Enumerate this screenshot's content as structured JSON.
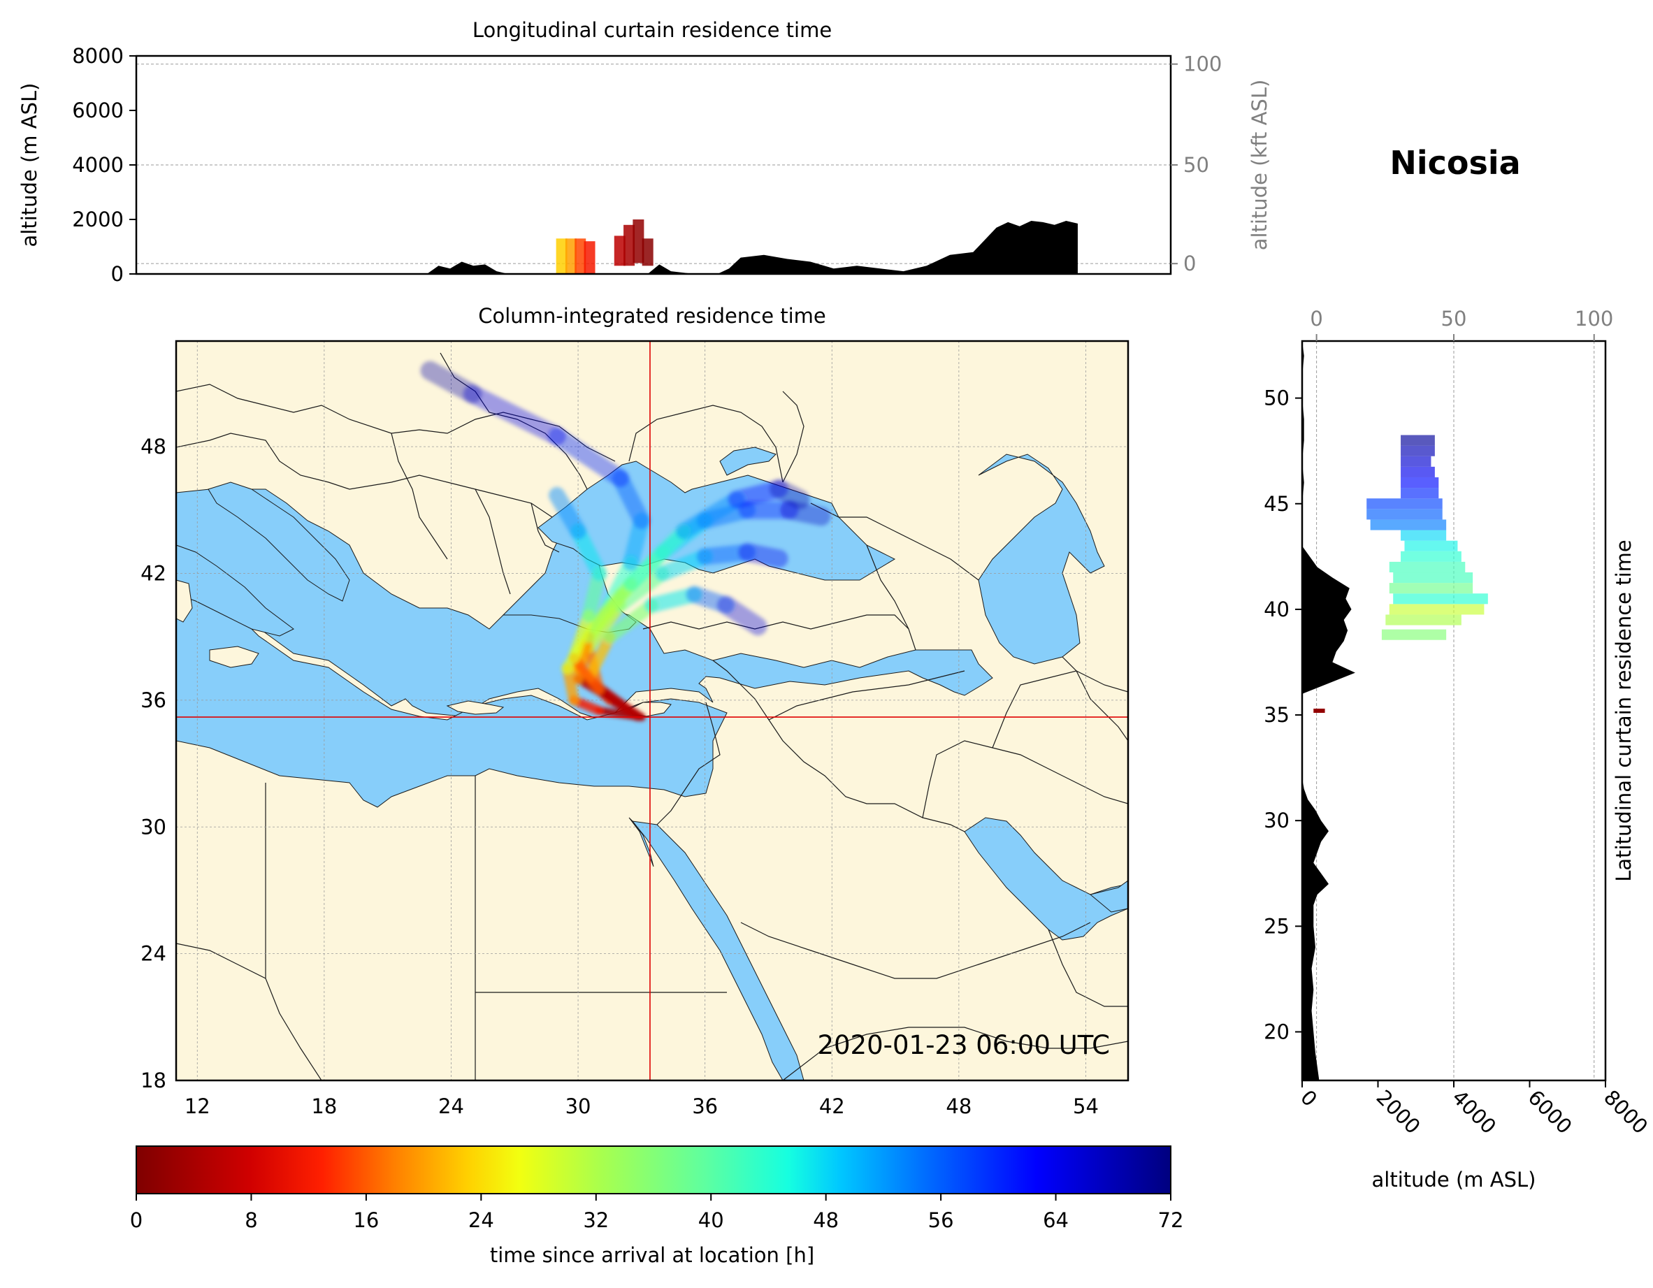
{
  "station": "Nicosia",
  "timestamp": "2020-01-23 06:00 UTC",
  "colors": {
    "land": "#fdf6dc",
    "sea": "#87cefa",
    "crosshair": "#e00000",
    "terrain": "#000000",
    "grid": "#9a9a9a",
    "secondary_axis": "#808080"
  },
  "chart_data": [
    {
      "name": "longitudinal-curtain",
      "type": "area",
      "title": "Longitudinal curtain residence time",
      "ylabel": "altitude (m ASL)",
      "ylabel_right": "altitude (kft ASL)",
      "ylim": [
        0,
        8000
      ],
      "yticks": [
        "0",
        "2000",
        "4000",
        "6000",
        "8000"
      ],
      "yticks_right": [
        "0",
        "50",
        "100"
      ],
      "xlim": [
        11,
        55.5
      ],
      "terrain": {
        "lon": [
          11,
          23.5,
          24,
          24.5,
          25,
          25.5,
          26,
          26.5,
          27,
          27.5,
          29,
          31,
          33,
          33.5,
          34,
          35,
          36,
          36.5,
          37,
          38,
          39,
          40,
          41,
          42,
          43,
          44,
          45,
          46,
          47,
          48,
          48.5,
          49,
          49.5,
          50,
          50.5,
          51,
          51.5
        ],
        "alt": [
          0,
          0,
          300,
          200,
          450,
          300,
          350,
          100,
          0,
          0,
          0,
          0,
          0,
          350,
          100,
          0,
          0,
          200,
          600,
          700,
          550,
          450,
          200,
          300,
          200,
          100,
          300,
          700,
          800,
          1700,
          1900,
          1750,
          1950,
          1900,
          1800,
          1950,
          1850
        ]
      },
      "plume": [
        {
          "lon": 29.3,
          "alt_min": 0,
          "alt_max": 1300,
          "age_h": 23
        },
        {
          "lon": 29.7,
          "alt_min": 0,
          "alt_max": 1300,
          "age_h": 20
        },
        {
          "lon": 30.1,
          "alt_min": 0,
          "alt_max": 1300,
          "age_h": 15
        },
        {
          "lon": 30.5,
          "alt_min": 0,
          "alt_max": 1200,
          "age_h": 12
        },
        {
          "lon": 31.8,
          "alt_min": 300,
          "alt_max": 1400,
          "age_h": 6
        },
        {
          "lon": 32.2,
          "alt_min": 300,
          "alt_max": 1800,
          "age_h": 4
        },
        {
          "lon": 32.6,
          "alt_min": 400,
          "alt_max": 2000,
          "age_h": 2
        },
        {
          "lon": 33.0,
          "alt_min": 300,
          "alt_max": 1300,
          "age_h": 1
        }
      ]
    },
    {
      "name": "column-integrated",
      "type": "heatmap",
      "title": "Column-integrated residence time",
      "xlim": [
        11,
        56
      ],
      "ylim": [
        18,
        53
      ],
      "xticks": [
        "12",
        "18",
        "24",
        "30",
        "36",
        "42",
        "48",
        "54"
      ],
      "yticks": [
        "18",
        "24",
        "30",
        "36",
        "42",
        "48"
      ],
      "release_point": {
        "lon": 33.4,
        "lat": 35.2
      },
      "trajectories": [
        {
          "lon": [
            33.0,
            31.0,
            29.8,
            29.5,
            30.5,
            31.5,
            32.5,
            33.0,
            32.0,
            29.0,
            25.0,
            23.0
          ],
          "lat": [
            35.2,
            35.5,
            36.0,
            37.5,
            39.0,
            40.5,
            42.5,
            44.5,
            46.5,
            48.5,
            50.5,
            51.6
          ],
          "age_h": [
            0,
            8,
            16,
            24,
            32,
            40,
            48,
            54,
            58,
            62,
            66,
            72
          ]
        },
        {
          "lon": [
            33.0,
            31.5,
            30.0,
            30.5,
            32.0,
            34.0,
            36.0,
            38.0,
            40.0,
            41.5
          ],
          "lat": [
            35.2,
            36.0,
            37.5,
            39.0,
            41.0,
            43.0,
            44.5,
            45.0,
            45.0,
            44.7
          ],
          "age_h": [
            0,
            8,
            20,
            28,
            36,
            44,
            52,
            58,
            64,
            70
          ]
        },
        {
          "lon": [
            32.8,
            31.0,
            30.5,
            32.0,
            34.0,
            36.0,
            38.0,
            39.5
          ],
          "lat": [
            35.2,
            36.5,
            38.5,
            40.5,
            42.0,
            42.8,
            43.0,
            42.7
          ],
          "age_h": [
            0,
            10,
            24,
            34,
            44,
            52,
            60,
            68
          ]
        },
        {
          "lon": [
            32.5,
            30.5,
            31.5,
            33.5,
            35.5,
            37.0,
            38.5
          ],
          "lat": [
            35.5,
            37.0,
            39.0,
            40.5,
            41.0,
            40.5,
            39.5
          ],
          "age_h": [
            0,
            14,
            30,
            42,
            52,
            60,
            70
          ]
        },
        {
          "lon": [
            32.5,
            30.0,
            30.5,
            32.5,
            35.0,
            37.5,
            39.5,
            40.5
          ],
          "lat": [
            35.5,
            37.0,
            39.0,
            41.5,
            44.0,
            45.5,
            46.0,
            45.5
          ],
          "age_h": [
            0,
            12,
            26,
            38,
            48,
            58,
            66,
            72
          ]
        },
        {
          "lon": [
            33.0,
            31.0,
            29.8,
            30.5,
            31.0,
            30.0,
            29.0
          ],
          "lat": [
            35.2,
            36.5,
            38.0,
            40.0,
            42.0,
            44.0,
            45.7
          ],
          "age_h": [
            0,
            10,
            22,
            34,
            44,
            50,
            56
          ]
        }
      ]
    },
    {
      "name": "latitudinal-curtain",
      "type": "area",
      "title": "Latitudinal curtain residence time",
      "xlabel": "altitude (m ASL)",
      "xlabel_top": "",
      "xlim": [
        0,
        8000
      ],
      "xticks": [
        "0",
        "2000",
        "4000",
        "6000",
        "8000"
      ],
      "xticks_top": [
        "0",
        "50",
        "100"
      ],
      "ylim": [
        17.7,
        52.7
      ],
      "yticks": [
        "20",
        "25",
        "30",
        "35",
        "40",
        "45",
        "50"
      ],
      "terrain": {
        "lat": [
          17.7,
          19,
          20,
          21,
          22,
          23,
          24,
          25,
          26,
          26.5,
          27,
          27.5,
          28,
          29,
          29.5,
          30,
          30.5,
          31,
          31.5,
          32,
          33,
          34,
          35,
          35.5,
          36,
          36.5,
          37,
          37.5,
          38,
          38.5,
          39,
          39.5,
          40,
          40.5,
          41,
          41.5,
          42,
          43,
          45,
          46,
          47,
          48,
          49,
          50,
          51,
          52,
          52.7
        ],
        "alt": [
          450,
          350,
          300,
          250,
          300,
          250,
          350,
          300,
          300,
          400,
          700,
          500,
          300,
          500,
          700,
          500,
          350,
          150,
          50,
          0,
          0,
          0,
          0,
          0,
          0,
          700,
          1400,
          800,
          900,
          1100,
          1200,
          1100,
          1300,
          1150,
          1250,
          800,
          400,
          0,
          0,
          50,
          0,
          50,
          50,
          0,
          0,
          50,
          0
        ]
      },
      "plume": [
        {
          "lat": 38.8,
          "alt_min": 2100,
          "alt_max": 3800,
          "age_h": 36
        },
        {
          "lat": 39.5,
          "alt_min": 2200,
          "alt_max": 4200,
          "age_h": 32
        },
        {
          "lat": 40.0,
          "alt_min": 2300,
          "alt_max": 4800,
          "age_h": 30
        },
        {
          "lat": 40.5,
          "alt_min": 2400,
          "alt_max": 4900,
          "age_h": 44
        },
        {
          "lat": 41.0,
          "alt_min": 2300,
          "alt_max": 4500,
          "age_h": 38
        },
        {
          "lat": 41.5,
          "alt_min": 2400,
          "alt_max": 4500,
          "age_h": 42
        },
        {
          "lat": 42.0,
          "alt_min": 2300,
          "alt_max": 4300,
          "age_h": 42
        },
        {
          "lat": 42.5,
          "alt_min": 2600,
          "alt_max": 4200,
          "age_h": 44
        },
        {
          "lat": 43.0,
          "alt_min": 2700,
          "alt_max": 4100,
          "age_h": 46
        },
        {
          "lat": 43.5,
          "alt_min": 2600,
          "alt_max": 3800,
          "age_h": 48
        },
        {
          "lat": 44.0,
          "alt_min": 1800,
          "alt_max": 3800,
          "age_h": 54
        },
        {
          "lat": 44.5,
          "alt_min": 1700,
          "alt_max": 3700,
          "age_h": 56
        },
        {
          "lat": 45.0,
          "alt_min": 1700,
          "alt_max": 3700,
          "age_h": 58
        },
        {
          "lat": 45.5,
          "alt_min": 2600,
          "alt_max": 3600,
          "age_h": 60
        },
        {
          "lat": 46.0,
          "alt_min": 2600,
          "alt_max": 3600,
          "age_h": 62
        },
        {
          "lat": 46.5,
          "alt_min": 2600,
          "alt_max": 3500,
          "age_h": 64
        },
        {
          "lat": 47.0,
          "alt_min": 2600,
          "alt_max": 3400,
          "age_h": 66
        },
        {
          "lat": 47.5,
          "alt_min": 2600,
          "alt_max": 3500,
          "age_h": 68
        },
        {
          "lat": 48.0,
          "alt_min": 2600,
          "alt_max": 3500,
          "age_h": 70
        }
      ],
      "plume_low": {
        "lat": 35.2,
        "alt_min": 300,
        "alt_max": 600,
        "age_h": 2
      }
    },
    {
      "name": "colorbar",
      "type": "bar",
      "xlabel": "time since arrival at location [h]",
      "range": [
        0,
        72
      ],
      "ticks": [
        "0",
        "8",
        "16",
        "24",
        "32",
        "40",
        "48",
        "56",
        "64",
        "72"
      ]
    }
  ]
}
